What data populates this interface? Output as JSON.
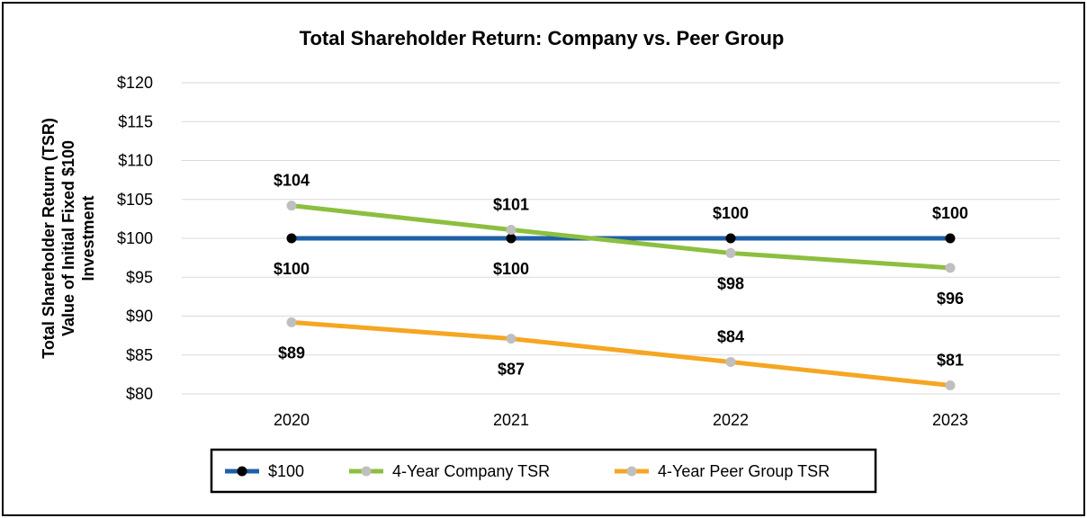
{
  "chart_data": {
    "type": "line",
    "title": "Total Shareholder Return: Company vs. Peer Group",
    "ylabel_lines": [
      "Total Shareholder Return (TSR)",
      "Value of Initial Fixed $100",
      "Investment"
    ],
    "xlabel": "",
    "categories": [
      "2020",
      "2021",
      "2022",
      "2023"
    ],
    "ylim": [
      80,
      120
    ],
    "yticks": [
      80,
      85,
      90,
      95,
      100,
      105,
      110,
      115,
      120
    ],
    "ytick_labels": [
      "$80",
      "$85",
      "$90",
      "$95",
      "$100",
      "$105",
      "$110",
      "$115",
      "$120"
    ],
    "grid": true,
    "legend_position": "bottom",
    "series": [
      {
        "name": "$100",
        "values": [
          100,
          100,
          100,
          100
        ],
        "labels": [
          "$100",
          "$100",
          "$100",
          "$100"
        ],
        "label_side": [
          "below",
          "below",
          "above",
          "above"
        ],
        "line_color": "#1f5fa6",
        "marker_color": "#000000"
      },
      {
        "name": "4-Year Company TSR",
        "values": [
          104.2,
          101.1,
          98.1,
          96.2
        ],
        "labels": [
          "$104",
          "$101",
          "$98",
          "$96"
        ],
        "label_side": [
          "above",
          "above",
          "below",
          "below"
        ],
        "line_color": "#8cbf3f",
        "marker_color": "#bfbfbf"
      },
      {
        "name": "4-Year Peer Group TSR",
        "values": [
          89.2,
          87.1,
          84.1,
          81.1
        ],
        "labels": [
          "$89",
          "$87",
          "$84",
          "$81"
        ],
        "label_side": [
          "below",
          "below",
          "above",
          "above"
        ],
        "line_color": "#f5a623",
        "marker_color": "#bfbfbf"
      }
    ]
  }
}
